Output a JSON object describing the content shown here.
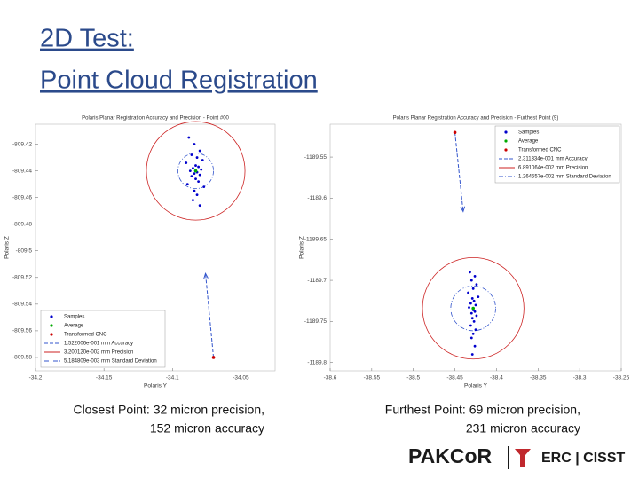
{
  "slide": {
    "title": [
      "2D Test:",
      "Point Cloud Registration"
    ],
    "captions": [
      [
        "Closest Point: 32 micron precision,",
        "152 micron accuracy"
      ],
      [
        "Furthest Point: 69 micron precision,",
        "231 micron accuracy"
      ]
    ],
    "logo": [
      "PAKCoR",
      "ERC | CISST"
    ]
  },
  "chart_data": [
    {
      "type": "scatter",
      "title": "Polaris Planar Registration Accuracy and Precision - Point #00",
      "x_label": "Polaris Y",
      "y_label": "Polaris Z",
      "xlim": [
        -34.2,
        -34.025
      ],
      "ylim": [
        -809.59,
        -809.405
      ],
      "xticks": [
        -34.2,
        -34.15,
        -34.1,
        -34.05
      ],
      "yticks": [
        -809.42,
        -809.44,
        -809.46,
        -809.48,
        -809.5,
        -809.52,
        -809.54,
        -809.56,
        -809.58
      ],
      "legend": "lower left",
      "series": [
        {
          "name": "Samples",
          "color": "#0000cc",
          "marker": "dot",
          "x": [
            -34.088,
            -34.084,
            -34.08,
            -34.086,
            -34.082,
            -34.078,
            -34.09,
            -34.083,
            -34.081,
            -34.085,
            -34.079,
            -34.087,
            -34.082,
            -34.084,
            -34.08,
            -34.086,
            -34.083,
            -34.081,
            -34.089,
            -34.077,
            -34.084,
            -34.082,
            -34.085,
            -34.08
          ],
          "y": [
            -809.415,
            -809.42,
            -809.425,
            -809.428,
            -809.43,
            -809.432,
            -809.434,
            -809.436,
            -809.437,
            -809.438,
            -809.439,
            -809.44,
            -809.441,
            -809.442,
            -809.443,
            -809.444,
            -809.446,
            -809.448,
            -809.45,
            -809.452,
            -809.455,
            -809.458,
            -809.462,
            -809.466
          ]
        },
        {
          "name": "Average",
          "color": "#00aa00",
          "marker": "dot",
          "x": [
            -34.083
          ],
          "y": [
            -809.44
          ]
        },
        {
          "name": "Transformed CNC",
          "color": "#cc0000",
          "marker": "dot",
          "x": [
            -34.07
          ],
          "y": [
            -809.58
          ]
        },
        {
          "name": "1.522006e-001 mm Accuracy",
          "color": "#3355cc",
          "line_style": "arrow"
        },
        {
          "name": "3.200120e-002 mm Precision",
          "color": "#cc2222",
          "line_style": "solid",
          "radius": 0.036
        },
        {
          "name": "5.184809e-003 mm Standard Deviation",
          "color": "#3355cc",
          "line_style": "dashdot",
          "radius": 0.013
        }
      ]
    },
    {
      "type": "scatter",
      "title": "Polaris Planar Registration Accuracy and Precision - Furthest Point (9)",
      "x_label": "Polaris Y",
      "y_label": "Polaris Z",
      "xlim": [
        -38.6,
        -38.25
      ],
      "ylim": [
        -1189.81,
        -1189.51
      ],
      "xticks": [
        -38.6,
        -38.55,
        -38.5,
        -38.45,
        -38.4,
        -38.35,
        -38.3,
        -38.25
      ],
      "yticks": [
        -1189.55,
        -1189.6,
        -1189.65,
        -1189.7,
        -1189.75,
        -1189.8
      ],
      "legend": "upper right",
      "series": [
        {
          "name": "Samples",
          "color": "#0000cc",
          "marker": "dot",
          "x": [
            -38.432,
            -38.426,
            -38.43,
            -38.424,
            -38.428,
            -38.434,
            -38.422,
            -38.429,
            -38.427,
            -38.431,
            -38.425,
            -38.433,
            -38.428,
            -38.426,
            -38.43,
            -38.424,
            -38.429,
            -38.427,
            -38.431,
            -38.425,
            -38.428,
            -38.43,
            -38.426,
            -38.429
          ],
          "y": [
            -1189.69,
            -1189.695,
            -1189.7,
            -1189.705,
            -1189.71,
            -1189.715,
            -1189.72,
            -1189.722,
            -1189.725,
            -1189.728,
            -1189.73,
            -1189.733,
            -1189.736,
            -1189.738,
            -1189.74,
            -1189.743,
            -1189.746,
            -1189.75,
            -1189.755,
            -1189.76,
            -1189.765,
            -1189.77,
            -1189.78,
            -1189.79
          ]
        },
        {
          "name": "Average",
          "color": "#00aa00",
          "marker": "dot",
          "x": [
            -38.428
          ],
          "y": [
            -1189.734
          ]
        },
        {
          "name": "Transformed CNC",
          "color": "#cc0000",
          "marker": "dot",
          "x": [
            -38.45
          ],
          "y": [
            -1189.52
          ]
        },
        {
          "name": "2.311334e-001 mm Accuracy",
          "color": "#3355cc",
          "line_style": "arrow"
        },
        {
          "name": "6.891064e-002 mm Precision",
          "color": "#cc2222",
          "line_style": "solid",
          "radius": 0.061
        },
        {
          "name": "1.264557e-002 mm Standard Deviation",
          "color": "#3355cc",
          "line_style": "dashdot",
          "radius": 0.027
        }
      ]
    }
  ]
}
